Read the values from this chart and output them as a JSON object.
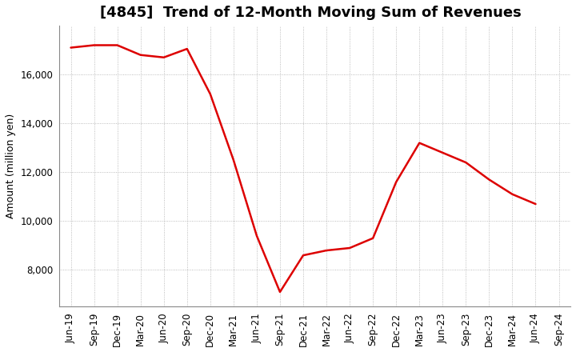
{
  "title": "[4845]  Trend of 12-Month Moving Sum of Revenues",
  "ylabel": "Amount (million yen)",
  "background_color": "#ffffff",
  "grid_color": "#aaaaaa",
  "line_color": "#dd0000",
  "x_labels": [
    "Jun-19",
    "Sep-19",
    "Dec-19",
    "Mar-20",
    "Jun-20",
    "Sep-20",
    "Dec-20",
    "Mar-21",
    "Jun-21",
    "Sep-21",
    "Dec-21",
    "Mar-22",
    "Jun-22",
    "Sep-22",
    "Dec-22",
    "Mar-23",
    "Jun-23",
    "Sep-23",
    "Dec-23",
    "Mar-24",
    "Jun-24",
    "Sep-24"
  ],
  "values": [
    17100,
    17200,
    17200,
    16800,
    16700,
    17050,
    15200,
    12500,
    9400,
    7100,
    8600,
    8800,
    8900,
    9300,
    11600,
    13200,
    12800,
    12400,
    11700,
    11100,
    10700,
    null
  ],
  "ylim": [
    6500,
    18000
  ],
  "yticks": [
    8000,
    10000,
    12000,
    14000,
    16000
  ],
  "title_fontsize": 13,
  "label_fontsize": 9,
  "tick_fontsize": 8.5
}
